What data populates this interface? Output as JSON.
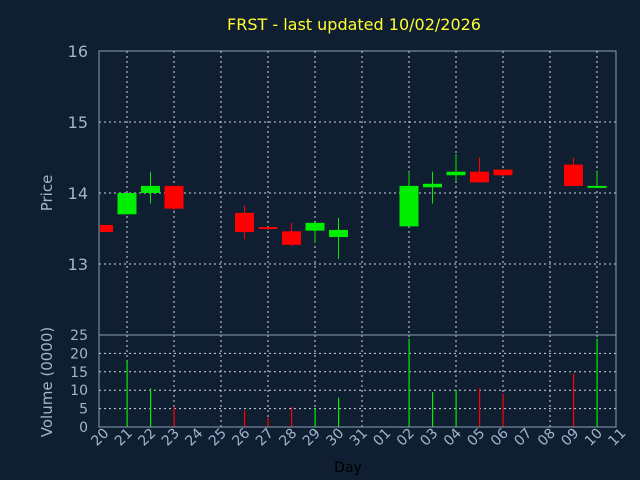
{
  "chart_data": [
    {
      "type": "candlestick",
      "title": "FRST - last updated 10/02/2026",
      "ylabel": "Price",
      "ylim": [
        12.0,
        16.0
      ],
      "yticks": [
        "13",
        "14",
        "15",
        "16"
      ],
      "up_color": "#00ee00",
      "down_color": "#ff0000",
      "grid": true,
      "candles": [
        {
          "day": "20",
          "open": 13.55,
          "high": 13.55,
          "low": 13.45,
          "close": 13.45
        },
        {
          "day": "21",
          "open": 13.7,
          "high": 14.0,
          "low": 13.7,
          "close": 14.0
        },
        {
          "day": "22",
          "open": 14.0,
          "high": 14.3,
          "low": 13.85,
          "close": 14.1
        },
        {
          "day": "23",
          "open": 14.1,
          "high": 14.1,
          "low": 13.75,
          "close": 13.78
        },
        {
          "day": "26",
          "open": 13.72,
          "high": 13.82,
          "low": 13.35,
          "close": 13.45
        },
        {
          "day": "27",
          "open": 13.52,
          "high": 13.52,
          "low": 13.48,
          "close": 13.5
        },
        {
          "day": "28",
          "open": 13.46,
          "high": 13.58,
          "low": 13.25,
          "close": 13.27
        },
        {
          "day": "29",
          "open": 13.47,
          "high": 13.58,
          "low": 13.3,
          "close": 13.58
        },
        {
          "day": "30",
          "open": 13.38,
          "high": 13.65,
          "low": 13.07,
          "close": 13.48
        },
        {
          "day": "02",
          "open": 13.53,
          "high": 14.3,
          "low": 13.53,
          "close": 14.1
        },
        {
          "day": "03",
          "open": 14.08,
          "high": 14.3,
          "low": 13.85,
          "close": 14.13
        },
        {
          "day": "04",
          "open": 14.25,
          "high": 14.55,
          "low": 14.17,
          "close": 14.3
        },
        {
          "day": "05",
          "open": 14.3,
          "high": 14.5,
          "low": 14.15,
          "close": 14.15
        },
        {
          "day": "06",
          "open": 14.33,
          "high": 14.33,
          "low": 14.23,
          "close": 14.25
        },
        {
          "day": "09",
          "open": 14.4,
          "high": 14.5,
          "low": 14.1,
          "close": 14.1
        },
        {
          "day": "10",
          "open": 14.08,
          "high": 14.3,
          "low": 14.08,
          "close": 14.1
        }
      ]
    },
    {
      "type": "bar",
      "ylabel": "Volume (0000)",
      "xlabel": "Day",
      "ylim": [
        0,
        25
      ],
      "yticks": [
        "0",
        "5",
        "10",
        "15",
        "20",
        "25"
      ],
      "categories": [
        "20",
        "21",
        "22",
        "23",
        "24",
        "25",
        "26",
        "27",
        "28",
        "29",
        "30",
        "31",
        "01",
        "02",
        "03",
        "04",
        "05",
        "06",
        "07",
        "08",
        "09",
        "10",
        "11"
      ],
      "values": [
        0,
        18,
        10.5,
        5.5,
        0,
        0,
        4.5,
        2.5,
        5.5,
        5,
        8,
        0,
        0,
        24,
        9.5,
        10,
        10.5,
        9,
        0,
        0,
        14.5,
        24,
        0
      ],
      "bar_colors": [
        "",
        "#00ee00",
        "#00ee00",
        "#ff0000",
        "",
        "",
        "#ff0000",
        "#ff0000",
        "#ff0000",
        "#00ee00",
        "#00ee00",
        "",
        "",
        "#00ee00",
        "#00ee00",
        "#00ee00",
        "#ff0000",
        "#ff0000",
        "",
        "",
        "#ff0000",
        "#00ee00",
        ""
      ]
    }
  ]
}
